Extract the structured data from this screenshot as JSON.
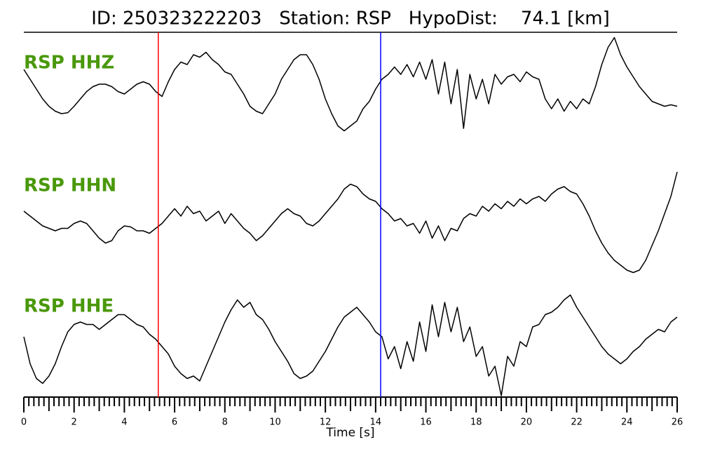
{
  "chart_data": {
    "type": "line",
    "title": "ID: 250323222203   Station: RSP   HypoDist:    74.1 [km]",
    "xlabel": "Time [s]",
    "xlim": [
      0,
      26
    ],
    "xticks": [
      0,
      2,
      4,
      6,
      8,
      10,
      12,
      14,
      16,
      18,
      20,
      22,
      24,
      26
    ],
    "xminor": 0.2,
    "x": [
      0,
      0.25,
      0.5,
      0.75,
      1,
      1.25,
      1.5,
      1.75,
      2,
      2.25,
      2.5,
      2.75,
      3,
      3.25,
      3.5,
      3.75,
      4,
      4.25,
      4.5,
      4.75,
      5,
      5.25,
      5.5,
      5.75,
      6,
      6.25,
      6.5,
      6.75,
      7,
      7.25,
      7.5,
      7.75,
      8,
      8.25,
      8.5,
      8.75,
      9,
      9.25,
      9.5,
      9.75,
      10,
      10.25,
      10.5,
      10.75,
      11,
      11.25,
      11.5,
      11.75,
      12,
      12.25,
      12.5,
      12.75,
      13,
      13.25,
      13.5,
      13.75,
      14,
      14.25,
      14.5,
      14.75,
      15,
      15.25,
      15.5,
      15.75,
      16,
      16.25,
      16.5,
      16.75,
      17,
      17.25,
      17.5,
      17.75,
      18,
      18.25,
      18.5,
      18.75,
      19,
      19.25,
      19.5,
      19.75,
      20,
      20.25,
      20.5,
      20.75,
      21,
      21.25,
      21.5,
      21.75,
      22,
      22.25,
      22.5,
      22.75,
      23,
      23.25,
      23.5,
      23.75,
      24,
      24.25,
      24.5,
      24.75,
      25,
      25.25,
      25.5,
      25.75,
      26
    ],
    "label_color": "#4a980b",
    "series": [
      {
        "name": "RSP HHZ",
        "color": "#000000",
        "values": [
          0.3,
          0.1,
          -0.1,
          -0.3,
          -0.45,
          -0.55,
          -0.6,
          -0.58,
          -0.45,
          -0.3,
          -0.15,
          -0.05,
          0,
          0,
          -0.05,
          -0.15,
          -0.2,
          -0.1,
          0,
          0.05,
          0,
          -0.15,
          -0.25,
          0.05,
          0.3,
          0.45,
          0.4,
          0.6,
          0.55,
          0.65,
          0.5,
          0.4,
          0.25,
          0.2,
          0,
          -0.2,
          -0.45,
          -0.55,
          -0.6,
          -0.4,
          -0.2,
          0.1,
          0.3,
          0.5,
          0.6,
          0.6,
          0.4,
          0.1,
          -0.3,
          -0.6,
          -0.85,
          -0.95,
          -0.85,
          -0.75,
          -0.5,
          -0.35,
          -0.1,
          0.1,
          0.2,
          0.35,
          0.2,
          0.4,
          0.15,
          0.45,
          0.1,
          0.5,
          -0.2,
          0.45,
          -0.4,
          0.3,
          -0.9,
          0.2,
          -0.3,
          0.1,
          -0.4,
          0.2,
          0,
          0.15,
          0.2,
          0.05,
          0.25,
          0.15,
          0.1,
          -0.3,
          -0.5,
          -0.3,
          -0.55,
          -0.35,
          -0.5,
          -0.3,
          -0.4,
          -0.05,
          0.4,
          0.75,
          0.95,
          0.6,
          0.35,
          0.15,
          -0.05,
          -0.2,
          -0.35,
          -0.4,
          -0.45,
          -0.42,
          -0.45
        ]
      },
      {
        "name": "RSP HHN",
        "color": "#000000",
        "values": [
          0.2,
          0.1,
          0,
          -0.1,
          -0.15,
          -0.2,
          -0.15,
          -0.15,
          -0.05,
          0,
          -0.05,
          -0.2,
          -0.35,
          -0.45,
          -0.4,
          -0.2,
          -0.1,
          -0.12,
          -0.2,
          -0.2,
          -0.25,
          -0.15,
          -0.05,
          0.1,
          0.25,
          0.1,
          0.3,
          0.15,
          0.2,
          0,
          0.1,
          0.2,
          -0.05,
          0.15,
          0,
          -0.15,
          -0.25,
          -0.4,
          -0.3,
          -0.15,
          0,
          0.15,
          0.25,
          0.15,
          0.1,
          -0.05,
          -0.1,
          0,
          0.15,
          0.3,
          0.45,
          0.65,
          0.75,
          0.7,
          0.55,
          0.45,
          0.4,
          0.25,
          0.15,
          0,
          0.05,
          -0.1,
          -0.05,
          -0.25,
          0,
          -0.35,
          -0.1,
          -0.4,
          -0.15,
          -0.2,
          0.05,
          0.15,
          0.1,
          0.3,
          0.2,
          0.35,
          0.25,
          0.4,
          0.3,
          0.45,
          0.35,
          0.45,
          0.5,
          0.4,
          0.55,
          0.65,
          0.7,
          0.6,
          0.55,
          0.35,
          0.1,
          -0.2,
          -0.45,
          -0.65,
          -0.8,
          -0.9,
          -1,
          -1.05,
          -1,
          -0.8,
          -0.5,
          -0.2,
          0.15,
          0.5,
          1
        ]
      },
      {
        "name": "RSP HHE",
        "color": "#000000",
        "values": [
          0,
          -0.55,
          -0.85,
          -0.95,
          -0.8,
          -0.55,
          -0.2,
          0.1,
          0.25,
          0.3,
          0.25,
          0.25,
          0.15,
          0.25,
          0.35,
          0.45,
          0.45,
          0.35,
          0.25,
          0.2,
          0.05,
          -0.05,
          -0.2,
          -0.35,
          -0.6,
          -0.75,
          -0.85,
          -0.8,
          -0.9,
          -0.6,
          -0.3,
          0,
          0.3,
          0.55,
          0.75,
          0.6,
          0.7,
          0.45,
          0.35,
          0.15,
          -0.1,
          -0.3,
          -0.5,
          -0.75,
          -0.85,
          -0.8,
          -0.7,
          -0.5,
          -0.3,
          -0.05,
          0.2,
          0.4,
          0.5,
          0.6,
          0.45,
          0.3,
          0.1,
          0,
          -0.45,
          -0.2,
          -0.65,
          -0.1,
          -0.5,
          0.3,
          -0.3,
          0.65,
          0,
          0.7,
          0.1,
          0.6,
          -0.1,
          0.2,
          -0.4,
          -0.2,
          -0.8,
          -0.6,
          -1.2,
          -0.4,
          -0.6,
          -0.1,
          -0.2,
          0.2,
          0.25,
          0.45,
          0.5,
          0.6,
          0.75,
          0.85,
          0.6,
          0.4,
          0.2,
          0,
          -0.2,
          -0.35,
          -0.45,
          -0.55,
          -0.45,
          -0.3,
          -0.2,
          -0.05,
          0.05,
          0.15,
          0.1,
          0.3,
          0.4
        ]
      }
    ],
    "picks": [
      {
        "x": 5.35,
        "color": "#ff0000"
      },
      {
        "x": 14.2,
        "color": "#0000ff"
      }
    ]
  }
}
